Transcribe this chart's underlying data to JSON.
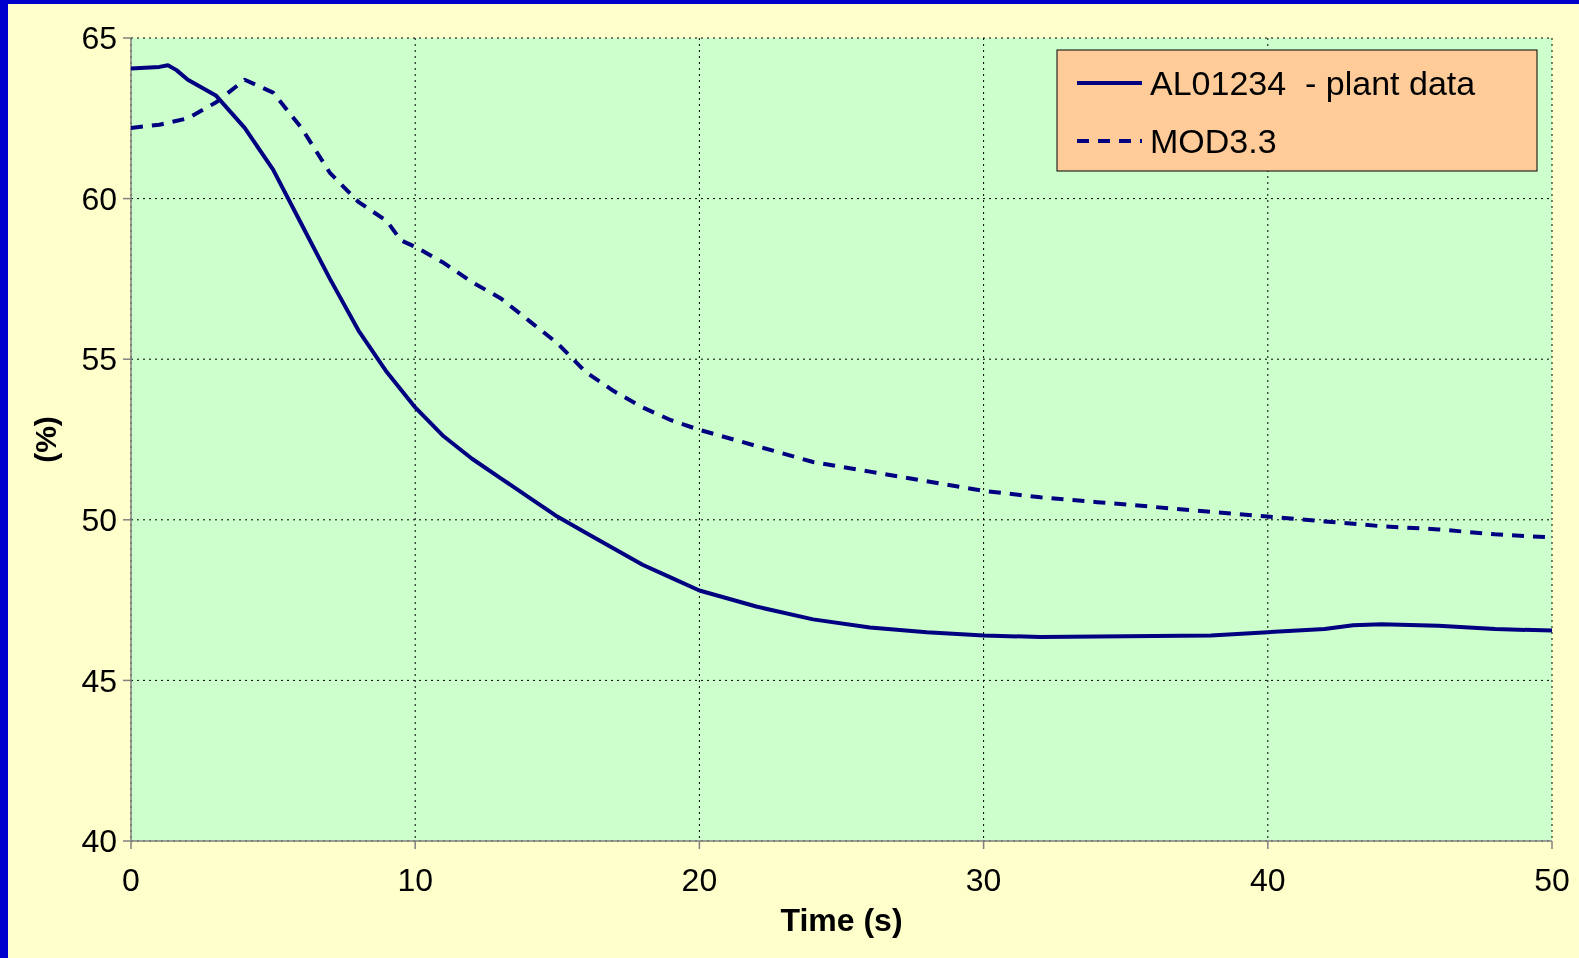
{
  "chart_data": {
    "type": "line",
    "xlabel": "Time (s)",
    "ylabel": "(%)",
    "xlim": [
      0,
      50
    ],
    "xticks": [
      0,
      10,
      20,
      30,
      40,
      50
    ],
    "ylim": [
      40,
      65
    ],
    "yticks": [
      40,
      45,
      50,
      55,
      60,
      65
    ],
    "grid": true,
    "legend": "top right",
    "series": [
      {
        "name": "AL01234  - plant data",
        "color": "#000080",
        "line_style": "solid",
        "x": [
          0,
          1,
          1.3,
          1.6,
          2,
          3,
          4,
          5,
          6,
          7,
          8,
          9,
          10,
          11,
          12,
          13,
          14,
          15,
          16,
          17,
          18,
          19,
          20,
          22,
          24,
          26,
          28,
          30,
          32,
          34,
          36,
          38,
          40,
          42,
          43,
          44,
          46,
          48,
          50
        ],
        "values": [
          64.05,
          64.1,
          64.15,
          64.0,
          63.7,
          63.2,
          62.2,
          60.9,
          59.2,
          57.5,
          55.9,
          54.6,
          53.5,
          52.6,
          51.9,
          51.3,
          50.7,
          50.1,
          49.6,
          49.1,
          48.6,
          48.2,
          47.8,
          47.3,
          46.9,
          46.65,
          46.5,
          46.4,
          46.35,
          46.37,
          46.38,
          46.4,
          46.5,
          46.6,
          46.72,
          46.75,
          46.7,
          46.6,
          46.55
        ]
      },
      {
        "name": "MOD3.3",
        "color": "#000080",
        "line_style": "dashed",
        "x": [
          0,
          1,
          2,
          3,
          4,
          5,
          6,
          7,
          8,
          9,
          9.5,
          10,
          11,
          12,
          13,
          14,
          15,
          16,
          17,
          18,
          19,
          20,
          22,
          24,
          26,
          28,
          30,
          32,
          34,
          36,
          38,
          40,
          42,
          44,
          46,
          48,
          50
        ],
        "values": [
          62.2,
          62.3,
          62.5,
          63.0,
          63.7,
          63.3,
          62.2,
          60.8,
          59.9,
          59.3,
          58.7,
          58.5,
          58.0,
          57.4,
          56.9,
          56.2,
          55.5,
          54.6,
          54.0,
          53.5,
          53.1,
          52.8,
          52.3,
          51.8,
          51.5,
          51.2,
          50.9,
          50.7,
          50.55,
          50.4,
          50.25,
          50.1,
          49.95,
          49.8,
          49.7,
          49.55,
          49.45
        ]
      }
    ]
  }
}
